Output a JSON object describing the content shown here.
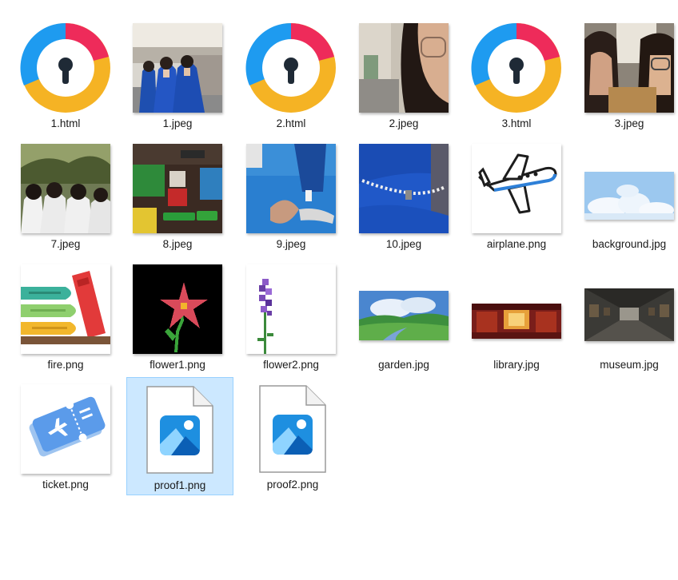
{
  "files": [
    {
      "name": "1.html",
      "icon": "browser-shield-icon"
    },
    {
      "name": "1.jpeg",
      "icon": "photo-graduation-thumbnail"
    },
    {
      "name": "2.html",
      "icon": "browser-shield-icon"
    },
    {
      "name": "2.jpeg",
      "icon": "photo-selfie-thumbnail"
    },
    {
      "name": "3.html",
      "icon": "browser-shield-icon"
    },
    {
      "name": "3.jpeg",
      "icon": "photo-selfie-thumbnail"
    },
    {
      "name": "7.jpeg",
      "icon": "photo-group-thumbnail"
    },
    {
      "name": "8.jpeg",
      "icon": "game-screenshot-thumbnail"
    },
    {
      "name": "9.jpeg",
      "icon": "photo-hands-thumbnail"
    },
    {
      "name": "10.jpeg",
      "icon": "photo-bracelet-thumbnail"
    },
    {
      "name": "airplane.png",
      "icon": "airplane-thumbnail"
    },
    {
      "name": "background.jpg",
      "icon": "sky-clouds-thumbnail"
    },
    {
      "name": "fire.png",
      "icon": "books-thumbnail"
    },
    {
      "name": "flower1.png",
      "icon": "pixel-flower-thumbnail"
    },
    {
      "name": "flower2.png",
      "icon": "pixel-lavender-thumbnail"
    },
    {
      "name": "garden.jpg",
      "icon": "pixel-garden-thumbnail"
    },
    {
      "name": "library.jpg",
      "icon": "pixel-library-thumbnail"
    },
    {
      "name": "museum.jpg",
      "icon": "museum-hall-thumbnail"
    },
    {
      "name": "ticket.png",
      "icon": "ticket-thumbnail"
    },
    {
      "name": "proof1.png",
      "icon": "image-file-icon",
      "selected": true
    },
    {
      "name": "proof2.png",
      "icon": "image-file-icon"
    }
  ],
  "colors": {
    "selection_bg": "#cce8ff",
    "selection_border": "#99d1ff",
    "label_text": "#1a1a1a"
  }
}
